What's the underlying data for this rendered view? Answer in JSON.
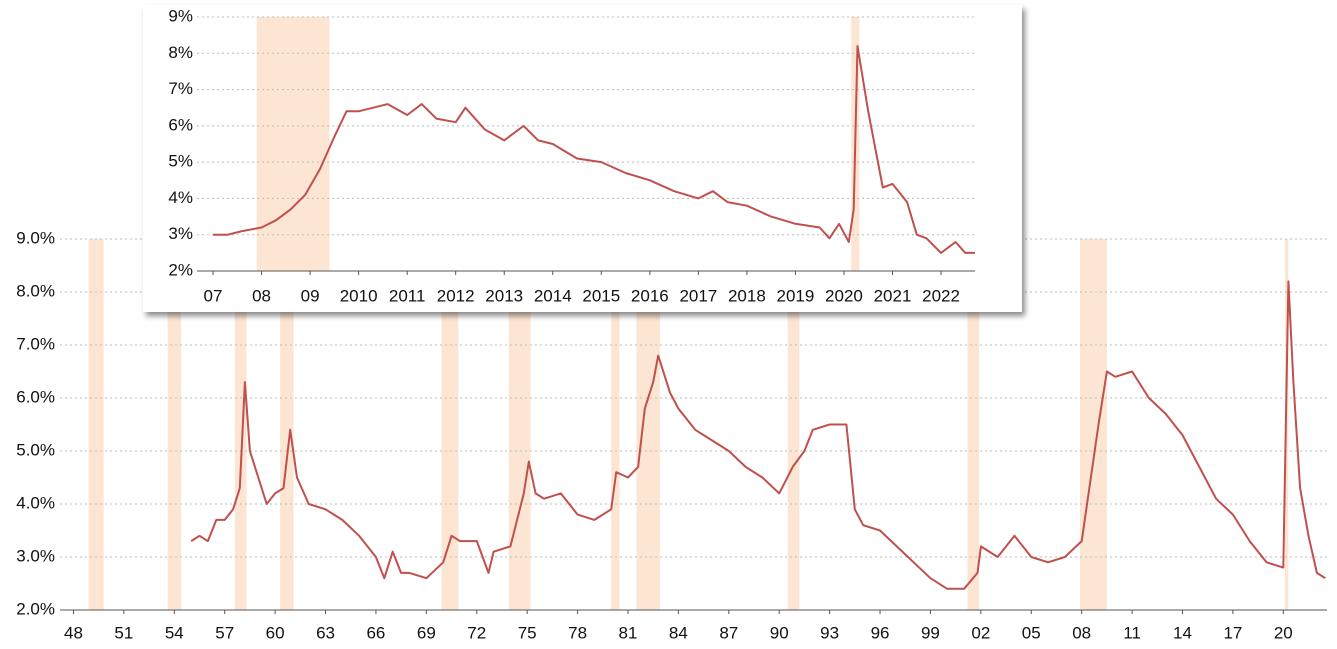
{
  "chart_data": [
    {
      "type": "line",
      "xlim": [
        1946.9,
        2022.6
      ],
      "ylim": [
        2,
        9
      ],
      "xticks": [
        {
          "value": 1948,
          "label": "48"
        },
        {
          "value": 1951,
          "label": "51"
        },
        {
          "value": 1954,
          "label": "54"
        },
        {
          "value": 1957,
          "label": "57"
        },
        {
          "value": 1960,
          "label": "60"
        },
        {
          "value": 1963,
          "label": "63"
        },
        {
          "value": 1966,
          "label": "66"
        },
        {
          "value": 1969,
          "label": "69"
        },
        {
          "value": 1972,
          "label": "72"
        },
        {
          "value": 1975,
          "label": "75"
        },
        {
          "value": 1978,
          "label": "78"
        },
        {
          "value": 1981,
          "label": "81"
        },
        {
          "value": 1984,
          "label": "84"
        },
        {
          "value": 1987,
          "label": "87"
        },
        {
          "value": 1990,
          "label": "90"
        },
        {
          "value": 1993,
          "label": "93"
        },
        {
          "value": 1996,
          "label": "96"
        },
        {
          "value": 1999,
          "label": "99"
        },
        {
          "value": 2002,
          "label": "02"
        },
        {
          "value": 2005,
          "label": "05"
        },
        {
          "value": 2008,
          "label": "08"
        },
        {
          "value": 2011,
          "label": "11"
        },
        {
          "value": 2014,
          "label": "14"
        },
        {
          "value": 2017,
          "label": "17"
        },
        {
          "value": 2020,
          "label": "20"
        }
      ],
      "yticks": [
        {
          "value": 2,
          "label": "2.0%"
        },
        {
          "value": 3,
          "label": "3.0%"
        },
        {
          "value": 4,
          "label": "4.0%"
        },
        {
          "value": 5,
          "label": "5.0%"
        },
        {
          "value": 6,
          "label": "6.0%"
        },
        {
          "value": 7,
          "label": "7.0%"
        },
        {
          "value": 8,
          "label": "8.0%"
        },
        {
          "value": 9,
          "label": "9.0%"
        }
      ],
      "grid": true,
      "recession_color": "#fde5d3",
      "recessions": [
        [
          1948.9,
          1949.8
        ],
        [
          1953.6,
          1954.4
        ],
        [
          1957.6,
          1958.3
        ],
        [
          1960.3,
          1961.1
        ],
        [
          1969.9,
          1970.9
        ],
        [
          1973.9,
          1975.2
        ],
        [
          1980.0,
          1980.5
        ],
        [
          1981.5,
          1982.9
        ],
        [
          1990.5,
          1991.2
        ],
        [
          2001.2,
          2001.9
        ],
        [
          2007.9,
          2009.5
        ],
        [
          2020.1,
          2020.3
        ]
      ],
      "series": [
        {
          "color": "#c0504d",
          "x": [
            1955.0,
            1955.5,
            1956.0,
            1956.5,
            1957.0,
            1957.5,
            1957.9,
            1958.2,
            1958.5,
            1959.0,
            1959.5,
            1960.0,
            1960.5,
            1960.9,
            1961.3,
            1962.0,
            1963.0,
            1964.0,
            1965.0,
            1966.0,
            1966.5,
            1967.0,
            1967.5,
            1968.0,
            1969.0,
            1970.0,
            1970.5,
            1971.0,
            1972.0,
            1972.7,
            1973.0,
            1974.0,
            1974.8,
            1975.1,
            1975.5,
            1976.0,
            1977.0,
            1978.0,
            1979.0,
            1980.0,
            1980.3,
            1981.0,
            1981.6,
            1982.0,
            1982.5,
            1982.8,
            1983.5,
            1984.0,
            1985.0,
            1986.0,
            1987.0,
            1988.0,
            1989.0,
            1990.0,
            1990.8,
            1991.5,
            1992.0,
            1993.0,
            1994.0,
            1994.5,
            1995.0,
            1996.0,
            1997.0,
            1998.0,
            1999.0,
            2000.0,
            2001.0,
            2001.8,
            2002.0,
            2003.0,
            2004.0,
            2005.0,
            2006.0,
            2007.0,
            2008.0,
            2009.0,
            2009.5,
            2010.0,
            2011.0,
            2012.0,
            2013.0,
            2014.0,
            2015.0,
            2016.0,
            2017.0,
            2018.0,
            2019.0,
            2020.0,
            2020.3,
            2020.6,
            2021.0,
            2021.5,
            2022.0,
            2022.5
          ],
          "values": [
            3.3,
            3.4,
            3.3,
            3.7,
            3.7,
            3.9,
            4.3,
            6.3,
            5.0,
            4.5,
            4.0,
            4.2,
            4.3,
            5.4,
            4.5,
            4.0,
            3.9,
            3.7,
            3.4,
            3.0,
            2.6,
            3.1,
            2.7,
            2.7,
            2.6,
            2.9,
            3.4,
            3.3,
            3.3,
            2.7,
            3.1,
            3.2,
            4.2,
            4.8,
            4.2,
            4.1,
            4.2,
            3.8,
            3.7,
            3.9,
            4.6,
            4.5,
            4.7,
            5.8,
            6.3,
            6.8,
            6.1,
            5.8,
            5.4,
            5.2,
            5.0,
            4.7,
            4.5,
            4.2,
            4.7,
            5.0,
            5.4,
            5.5,
            5.5,
            3.9,
            3.6,
            3.5,
            3.2,
            2.9,
            2.6,
            2.4,
            2.4,
            2.7,
            3.2,
            3.0,
            3.4,
            3.0,
            2.9,
            3.0,
            3.3,
            5.5,
            6.5,
            6.4,
            6.5,
            6.0,
            5.7,
            5.3,
            4.7,
            4.1,
            3.8,
            3.3,
            2.9,
            2.8,
            8.2,
            6.3,
            4.3,
            3.4,
            2.7,
            2.6
          ]
        }
      ]
    },
    {
      "type": "line",
      "xlim": [
        2006.67,
        2022.7
      ],
      "ylim": [
        2,
        9
      ],
      "xticks": [
        {
          "value": 2007,
          "label": "07"
        },
        {
          "value": 2008,
          "label": "08"
        },
        {
          "value": 2009,
          "label": "09"
        },
        2010,
        2011,
        2012,
        2013,
        2014,
        2015,
        2016,
        2017,
        2018,
        2019,
        2020,
        2021,
        2022
      ],
      "yticks": [
        {
          "value": 2,
          "label": "2%"
        },
        {
          "value": 3,
          "label": "3%"
        },
        {
          "value": 4,
          "label": "4%"
        },
        {
          "value": 5,
          "label": "5%"
        },
        {
          "value": 6,
          "label": "6%"
        },
        {
          "value": 7,
          "label": "7%"
        },
        {
          "value": 8,
          "label": "8%"
        },
        {
          "value": 9,
          "label": "9%"
        }
      ],
      "grid": true,
      "recession_color": "#fde5d3",
      "recessions": [
        [
          2007.9,
          2009.4
        ],
        [
          2020.15,
          2020.32
        ]
      ],
      "series": [
        {
          "color": "#c0504d",
          "x": [
            2007.0,
            2007.3,
            2007.6,
            2008.0,
            2008.3,
            2008.6,
            2008.9,
            2009.2,
            2009.5,
            2009.75,
            2010.0,
            2010.3,
            2010.6,
            2011.0,
            2011.3,
            2011.6,
            2012.0,
            2012.2,
            2012.6,
            2013.0,
            2013.4,
            2013.7,
            2014.0,
            2014.5,
            2015.0,
            2015.5,
            2016.0,
            2016.5,
            2017.0,
            2017.3,
            2017.6,
            2018.0,
            2018.5,
            2019.0,
            2019.5,
            2019.7,
            2019.9,
            2020.1,
            2020.2,
            2020.28,
            2020.5,
            2020.8,
            2021.0,
            2021.3,
            2021.5,
            2021.7,
            2022.0,
            2022.3,
            2022.5,
            2022.7
          ],
          "values": [
            3.0,
            3.0,
            3.1,
            3.2,
            3.4,
            3.7,
            4.1,
            4.8,
            5.7,
            6.4,
            6.4,
            6.5,
            6.6,
            6.3,
            6.6,
            6.2,
            6.1,
            6.5,
            5.9,
            5.6,
            6.0,
            5.6,
            5.5,
            5.1,
            5.0,
            4.7,
            4.5,
            4.2,
            4.0,
            4.2,
            3.9,
            3.8,
            3.5,
            3.3,
            3.2,
            2.9,
            3.3,
            2.8,
            3.7,
            8.2,
            6.4,
            4.3,
            4.4,
            3.9,
            3.0,
            2.9,
            2.5,
            2.8,
            2.5,
            2.5
          ]
        }
      ]
    }
  ]
}
